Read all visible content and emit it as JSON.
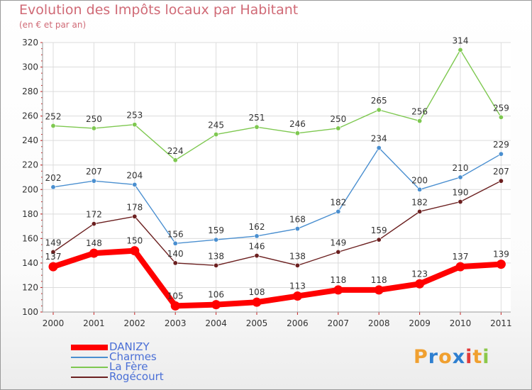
{
  "title": "Evolution des Impôts locaux par Habitant",
  "subtitle": "(en € et par an)",
  "logo": {
    "parts": [
      "P",
      "r",
      "o",
      "x",
      "i",
      "t",
      "i"
    ],
    "colors": [
      "#f0a030",
      "#2e7fd0",
      "#f0a030",
      "#2e7fd0",
      "#e23a3a",
      "#f0a030",
      "#8cc84a"
    ]
  },
  "chart_data": {
    "type": "line",
    "x": [
      "2000",
      "2001",
      "2002",
      "2003",
      "2004",
      "2005",
      "2006",
      "2007",
      "2008",
      "2009",
      "2010",
      "2011"
    ],
    "ylim": [
      100,
      320
    ],
    "yticks": [
      "100",
      "120",
      "140",
      "160",
      "180",
      "200",
      "220",
      "240",
      "260",
      "280",
      "300",
      "320"
    ],
    "grid": true,
    "legend_placement": "bottom-left",
    "series": [
      {
        "name": "DANIZY",
        "color": "#ff0000",
        "values": [
          137,
          148,
          150,
          105,
          106,
          108,
          113,
          118,
          118,
          123,
          137,
          139
        ]
      },
      {
        "name": "Charmes",
        "color": "#4a8fd0",
        "values": [
          202,
          207,
          204,
          156,
          159,
          162,
          168,
          182,
          234,
          200,
          210,
          229
        ]
      },
      {
        "name": "La Fère",
        "color": "#7ec850",
        "values": [
          252,
          250,
          253,
          224,
          245,
          251,
          246,
          250,
          265,
          256,
          314,
          259
        ]
      },
      {
        "name": "Rogécourt",
        "color": "#6b1f1f",
        "values": [
          149,
          172,
          178,
          140,
          138,
          146,
          138,
          149,
          159,
          182,
          190,
          207
        ]
      }
    ]
  }
}
